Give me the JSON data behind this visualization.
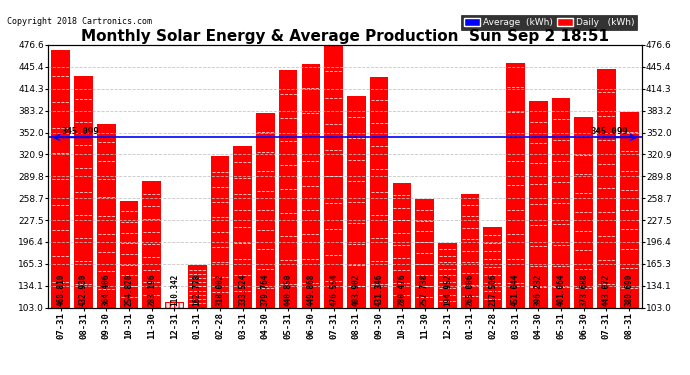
{
  "title": "Monthly Solar Energy & Average Production  Sun Sep 2 18:51",
  "copyright": "Copyright 2018 Cartronics.com",
  "categories": [
    "07-31",
    "08-31",
    "09-30",
    "10-31",
    "11-30",
    "12-31",
    "01-31",
    "02-28",
    "03-31",
    "04-30",
    "05-31",
    "06-30",
    "07-31",
    "08-31",
    "09-30",
    "10-31",
    "11-30",
    "12-31",
    "01-31",
    "02-28",
    "03-31",
    "04-30",
    "05-31",
    "06-30",
    "07-31",
    "08-31"
  ],
  "values": [
    468.81,
    432.93,
    364.406,
    254.82,
    283.196,
    110.342,
    162.778,
    318.002,
    333.524,
    379.764,
    440.85,
    449.868,
    476.554,
    403.902,
    431.346,
    280.476,
    257.738,
    194.952,
    265.006,
    217.506,
    451.044,
    396.232,
    401.064,
    373.688,
    443.072,
    380.69
  ],
  "average": 345.099,
  "ylim_min": 103.0,
  "ylim_max": 476.6,
  "yticks": [
    103.0,
    134.1,
    165.3,
    196.4,
    227.5,
    258.7,
    289.8,
    320.9,
    352.0,
    383.2,
    414.3,
    445.4,
    476.6
  ],
  "bar_color": "#FF0000",
  "avg_line_color": "#0000FF",
  "grid_color": "#C0C0C0",
  "background_color": "#FFFFFF",
  "text_color": "#000000",
  "legend_avg_bg": "#0000FF",
  "legend_daily_bg": "#FF0000",
  "avg_label": "345.099",
  "title_fontsize": 11,
  "tick_fontsize": 6.5,
  "bar_label_fontsize": 5.5,
  "copyright_fontsize": 6
}
